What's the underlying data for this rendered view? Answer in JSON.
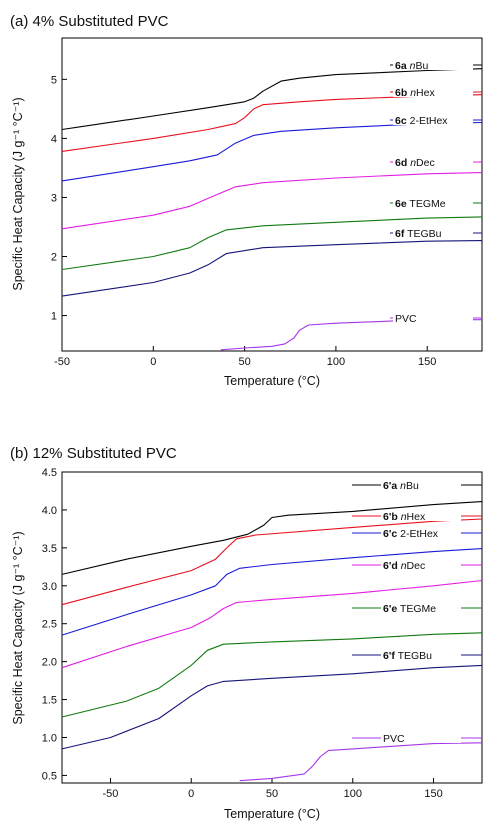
{
  "chart_data": [
    {
      "type": "line",
      "title": "(a) 4% Substituted PVC",
      "xlabel": "Temperature (°C)",
      "ylabel": "Specific Heat Capacity (J g⁻¹ °C⁻¹)",
      "xlim": [
        -50,
        180
      ],
      "ylim": [
        0.4,
        5.7
      ],
      "xticks": [
        -50,
        0,
        50,
        100,
        150
      ],
      "yticks": [
        1,
        2,
        3,
        4,
        5
      ],
      "grid": false,
      "legend": "inline-right",
      "series": [
        {
          "name": "6a nBu",
          "label_bold": "6a",
          "label_italic": "n",
          "label_rest": "Bu",
          "color": "#000000",
          "x": [
            -50,
            0,
            30,
            50,
            55,
            60,
            70,
            80,
            100,
            150,
            180
          ],
          "y": [
            4.15,
            4.38,
            4.52,
            4.62,
            4.68,
            4.8,
            4.97,
            5.02,
            5.08,
            5.15,
            5.18
          ]
        },
        {
          "name": "6b nHex",
          "label_bold": "6b",
          "label_italic": "n",
          "label_rest": "Hex",
          "color": "#e8101c",
          "x": [
            -50,
            0,
            30,
            45,
            50,
            55,
            60,
            80,
            100,
            150,
            180
          ],
          "y": [
            3.78,
            4.0,
            4.15,
            4.25,
            4.35,
            4.5,
            4.57,
            4.62,
            4.66,
            4.72,
            4.74
          ]
        },
        {
          "name": "6c 2-EtHex",
          "label_bold": "6c",
          "label_italic": "",
          "label_rest": " 2-EtHex",
          "color": "#1a1ad6",
          "x": [
            -50,
            0,
            20,
            35,
            45,
            55,
            70,
            100,
            150,
            180
          ],
          "y": [
            3.28,
            3.52,
            3.62,
            3.72,
            3.92,
            4.05,
            4.12,
            4.18,
            4.25,
            4.27
          ]
        },
        {
          "name": "6d nDec",
          "label_bold": "6d",
          "label_italic": "n",
          "label_rest": "Dec",
          "color": "#e31ee3",
          "x": [
            -50,
            0,
            20,
            35,
            45,
            60,
            100,
            150,
            180
          ],
          "y": [
            2.47,
            2.7,
            2.85,
            3.05,
            3.18,
            3.25,
            3.33,
            3.4,
            3.42
          ]
        },
        {
          "name": "6e TEGMe",
          "label_bold": "6e",
          "label_italic": "",
          "label_rest": " TEGMe",
          "color": "#117a11",
          "x": [
            -50,
            0,
            20,
            30,
            40,
            60,
            100,
            150,
            180
          ],
          "y": [
            1.78,
            2.0,
            2.15,
            2.32,
            2.45,
            2.52,
            2.58,
            2.65,
            2.67
          ]
        },
        {
          "name": "6f TEGBu",
          "label_bold": "6f",
          "label_italic": "",
          "label_rest": " TEGBu",
          "color": "#15157a",
          "x": [
            -50,
            0,
            20,
            30,
            40,
            60,
            100,
            150,
            180
          ],
          "y": [
            1.33,
            1.56,
            1.72,
            1.86,
            2.05,
            2.15,
            2.2,
            2.26,
            2.27
          ]
        },
        {
          "name": "PVC",
          "label_bold": "",
          "label_italic": "",
          "label_rest": "PVC",
          "color": "#a637e8",
          "x": [
            37,
            50,
            65,
            72,
            77,
            80,
            85,
            100,
            150,
            180
          ],
          "y": [
            0.42,
            0.45,
            0.48,
            0.52,
            0.62,
            0.75,
            0.84,
            0.87,
            0.93,
            0.93
          ]
        }
      ]
    },
    {
      "type": "line",
      "title": "(b) 12% Substituted PVC",
      "xlabel": "Temperature (°C)",
      "ylabel": "Specific Heat Capacity (J g⁻¹ °C⁻¹)",
      "xlim": [
        -80,
        180
      ],
      "ylim": [
        0.4,
        4.5
      ],
      "xticks": [
        -50,
        0,
        50,
        100,
        150
      ],
      "yticks": [
        0.5,
        1.0,
        1.5,
        2.0,
        2.5,
        3.0,
        3.5,
        4.0,
        4.5
      ],
      "ytick_labels": [
        "0.5",
        "1.0",
        "1.5",
        "2.0",
        "2.5",
        "3.0",
        "3.5",
        "4.0",
        "4.5"
      ],
      "grid": false,
      "legend": "inline-right",
      "series": [
        {
          "name": "6'a nBu",
          "label_bold": "6'a",
          "label_italic": "n",
          "label_rest": "Bu",
          "color": "#000000",
          "x": [
            -80,
            -40,
            0,
            20,
            35,
            45,
            50,
            60,
            100,
            150,
            180
          ],
          "y": [
            3.15,
            3.35,
            3.52,
            3.6,
            3.68,
            3.8,
            3.9,
            3.93,
            3.98,
            4.07,
            4.11
          ]
        },
        {
          "name": "6'b nHex",
          "label_bold": "6'b",
          "label_italic": "n",
          "label_rest": "Hex",
          "color": "#e8101c",
          "x": [
            -80,
            -40,
            0,
            15,
            22,
            28,
            40,
            100,
            150,
            180
          ],
          "y": [
            2.75,
            2.98,
            3.2,
            3.35,
            3.5,
            3.62,
            3.67,
            3.77,
            3.85,
            3.88
          ]
        },
        {
          "name": "6'c 2-EtHex",
          "label_bold": "6'c",
          "label_italic": "",
          "label_rest": " 2-EtHex",
          "color": "#1a1ad6",
          "x": [
            -80,
            -40,
            0,
            15,
            22,
            30,
            50,
            100,
            150,
            180
          ],
          "y": [
            2.35,
            2.62,
            2.88,
            3.0,
            3.15,
            3.23,
            3.28,
            3.37,
            3.45,
            3.49
          ]
        },
        {
          "name": "6'd nDec",
          "label_bold": "6'd",
          "label_italic": "n",
          "label_rest": "Dec",
          "color": "#e31ee3",
          "x": [
            -80,
            -40,
            0,
            12,
            20,
            28,
            50,
            100,
            150,
            180
          ],
          "y": [
            1.92,
            2.2,
            2.45,
            2.58,
            2.7,
            2.78,
            2.82,
            2.9,
            3.0,
            3.07
          ]
        },
        {
          "name": "6'e TEGMe",
          "label_bold": "6'e",
          "label_italic": "",
          "label_rest": " TEGMe",
          "color": "#117a11",
          "x": [
            -80,
            -40,
            -20,
            0,
            10,
            20,
            50,
            100,
            150,
            180
          ],
          "y": [
            1.27,
            1.48,
            1.65,
            1.95,
            2.15,
            2.23,
            2.26,
            2.3,
            2.36,
            2.38
          ]
        },
        {
          "name": "6'f TEGBu",
          "label_bold": "6'f",
          "label_italic": "",
          "label_rest": " TEGBu",
          "color": "#15157a",
          "x": [
            -80,
            -50,
            -20,
            0,
            10,
            20,
            50,
            100,
            150,
            180
          ],
          "y": [
            0.85,
            1.0,
            1.25,
            1.55,
            1.68,
            1.74,
            1.78,
            1.84,
            1.92,
            1.95
          ]
        },
        {
          "name": "PVC",
          "label_bold": "",
          "label_italic": "",
          "label_rest": "PVC",
          "color": "#a637e8",
          "x": [
            30,
            50,
            70,
            75,
            80,
            85,
            100,
            150,
            180
          ],
          "y": [
            0.43,
            0.46,
            0.52,
            0.62,
            0.75,
            0.83,
            0.85,
            0.92,
            0.93
          ]
        }
      ]
    }
  ]
}
